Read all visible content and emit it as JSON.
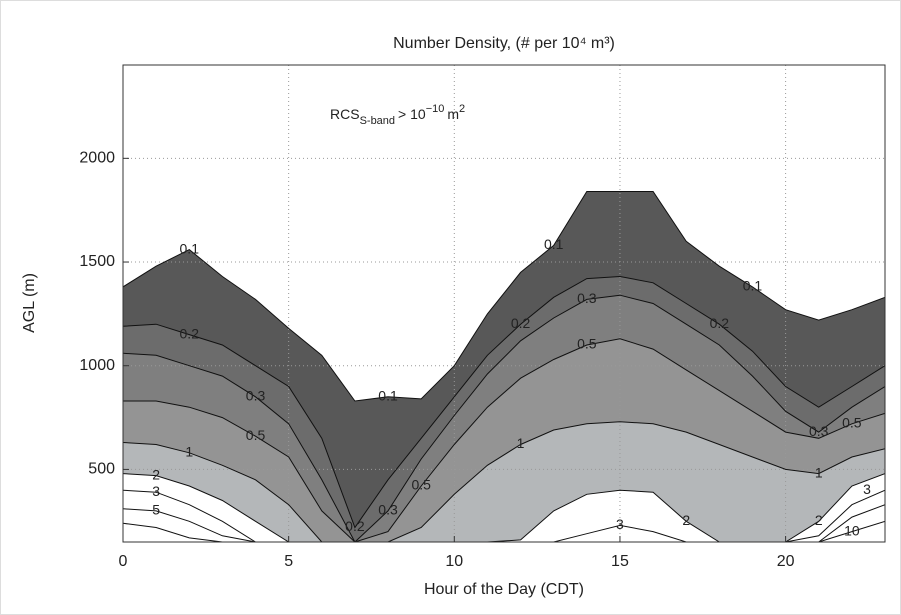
{
  "chart_data": {
    "type": "contour",
    "title": "Number Density, (# per 10⁴ m³)",
    "annotation": {
      "base": "RCS",
      "sub": "S-band",
      "text": "> 10",
      "exp": "−10",
      "unit": "m",
      "unit_exp": "2"
    },
    "x_label": "Hour of the Day (CDT)",
    "y_label": "AGL (m)",
    "x": [
      0,
      1,
      2,
      3,
      4,
      5,
      6,
      7,
      8,
      9,
      10,
      11,
      12,
      13,
      14,
      15,
      16,
      17,
      18,
      19,
      20,
      21,
      22,
      23
    ],
    "xlim": [
      0,
      23
    ],
    "ylim": [
      150,
      2450
    ],
    "xticks": [
      0,
      5,
      10,
      15,
      20
    ],
    "yticks": [
      500,
      1000,
      1500,
      2000
    ],
    "grid": true,
    "levels": [
      {
        "label": "0.1",
        "color": "#585858",
        "values": [
          1380,
          1480,
          1560,
          1430,
          1320,
          1180,
          1050,
          830,
          850,
          840,
          1000,
          1250,
          1450,
          1580,
          1840,
          1840,
          1840,
          1600,
          1480,
          1380,
          1270,
          1220,
          1270,
          1330
        ]
      },
      {
        "label": "0.2",
        "color": "#6c6c6c",
        "values": [
          1190,
          1200,
          1150,
          1100,
          1000,
          900,
          650,
          220,
          450,
          650,
          850,
          1050,
          1200,
          1330,
          1420,
          1430,
          1400,
          1300,
          1200,
          1070,
          900,
          800,
          900,
          1000
        ]
      },
      {
        "label": "0.3",
        "color": "#7f7f7f",
        "values": [
          1060,
          1050,
          1000,
          950,
          850,
          720,
          450,
          150,
          300,
          550,
          760,
          960,
          1120,
          1230,
          1320,
          1340,
          1300,
          1200,
          1100,
          950,
          780,
          680,
          800,
          900
        ]
      },
      {
        "label": "0.5",
        "color": "#949494",
        "values": [
          830,
          830,
          800,
          750,
          660,
          560,
          300,
          150,
          200,
          420,
          620,
          800,
          940,
          1030,
          1100,
          1130,
          1080,
          980,
          880,
          780,
          680,
          650,
          720,
          770
        ]
      },
      {
        "label": "1",
        "color": "#b4b7b9",
        "values": [
          630,
          620,
          580,
          520,
          450,
          330,
          150,
          150,
          150,
          220,
          380,
          520,
          620,
          690,
          720,
          730,
          720,
          680,
          620,
          560,
          500,
          480,
          560,
          600
        ]
      },
      {
        "label": "2",
        "color": "#ffffff",
        "values": [
          480,
          470,
          420,
          350,
          250,
          150,
          150,
          150,
          150,
          150,
          150,
          150,
          160,
          300,
          380,
          400,
          390,
          250,
          150,
          150,
          150,
          250,
          420,
          480
        ]
      },
      {
        "label": "3",
        "color": "#ffffff",
        "values": [
          400,
          390,
          330,
          250,
          150,
          150,
          150,
          150,
          150,
          150,
          150,
          150,
          150,
          150,
          190,
          230,
          200,
          150,
          150,
          150,
          150,
          180,
          330,
          400
        ]
      },
      {
        "label": "5",
        "color": "#ffffff",
        "values": [
          310,
          300,
          250,
          180,
          150,
          150,
          150,
          150,
          150,
          150,
          150,
          150,
          150,
          150,
          150,
          150,
          150,
          150,
          150,
          150,
          150,
          150,
          270,
          330
        ]
      },
      {
        "label": "10",
        "color": "#ffffff",
        "values": [
          240,
          220,
          170,
          150,
          150,
          150,
          150,
          150,
          150,
          150,
          150,
          150,
          150,
          150,
          150,
          150,
          150,
          150,
          150,
          150,
          150,
          150,
          200,
          250
        ]
      }
    ]
  }
}
